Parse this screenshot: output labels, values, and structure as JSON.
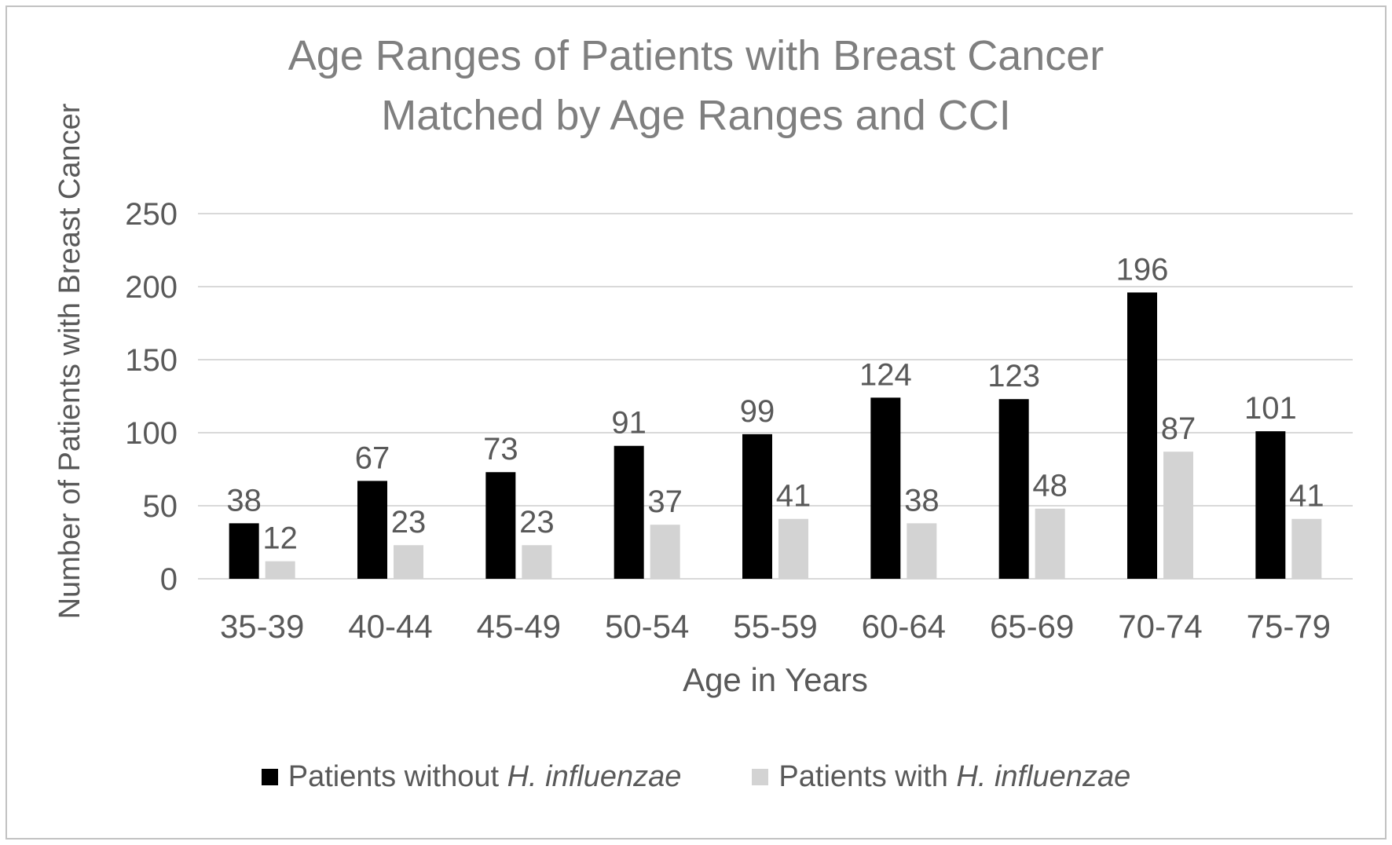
{
  "chart_data": {
    "type": "bar",
    "title": "Age Ranges of Patients with Breast Cancer Matched by Age Ranges and CCI",
    "title_lines": [
      "Age Ranges of Patients with Breast Cancer",
      "Matched by Age Ranges and CCI"
    ],
    "xlabel": "Age in Years",
    "ylabel": "Number of Patients with Breast Cancer",
    "categories": [
      "35-39",
      "40-44",
      "45-49",
      "50-54",
      "55-59",
      "60-64",
      "65-69",
      "70-74",
      "75-79"
    ],
    "series": [
      {
        "name": "Patients without H. influenzae",
        "legend_prefix": "Patients without ",
        "legend_italic": "H. influenzae",
        "color": "#000000",
        "values": [
          38,
          67,
          73,
          91,
          99,
          124,
          123,
          196,
          101
        ]
      },
      {
        "name": "Patients with H. influenzae",
        "legend_prefix": "Patients with ",
        "legend_italic": "H. influenzae",
        "color": "#d3d3d3",
        "values": [
          12,
          23,
          23,
          37,
          41,
          38,
          48,
          87,
          41
        ]
      }
    ],
    "yticks": [
      0,
      50,
      100,
      150,
      200,
      250
    ],
    "ylim": [
      0,
      250
    ],
    "grid": true,
    "legend_position": "bottom",
    "data_labels": true,
    "colors": {
      "grid": "#d9d9d9",
      "axis_text": "#595959",
      "title_text": "#7f7f7f",
      "data_label_text": "#595959",
      "frame_border": "#c2c2c2"
    }
  }
}
